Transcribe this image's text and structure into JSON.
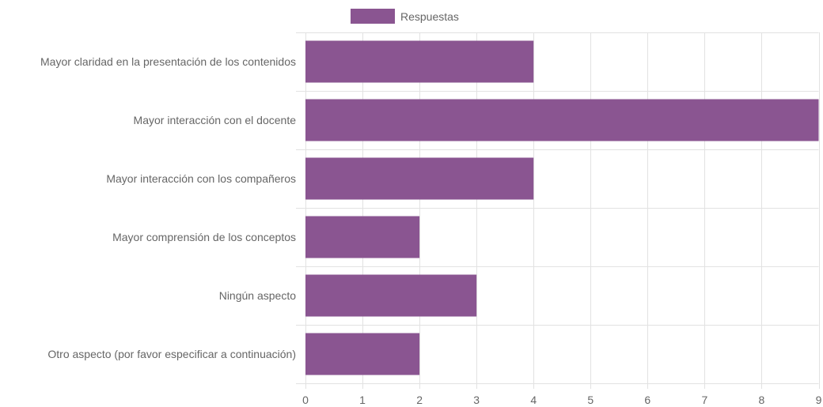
{
  "chart_data": {
    "type": "bar",
    "orientation": "horizontal",
    "categories": [
      "Mayor claridad en la presentación de los contenidos",
      "Mayor interacción con el docente",
      "Mayor interacción con los compañeros",
      "Mayor comprensión de los conceptos",
      "Ningún aspecto",
      "Otro aspecto (por favor especificar a continuación)"
    ],
    "series": [
      {
        "name": "Respuestas",
        "values": [
          4,
          9,
          4,
          2,
          3,
          2
        ]
      }
    ],
    "x_ticks": [
      0,
      1,
      2,
      3,
      4,
      5,
      6,
      7,
      8,
      9
    ],
    "xlim": [
      0,
      9
    ],
    "grid": true,
    "legend_position": "top",
    "colors": {
      "bar": "#8a5591",
      "grid": "#e2e2e2",
      "text": "#666666"
    }
  }
}
